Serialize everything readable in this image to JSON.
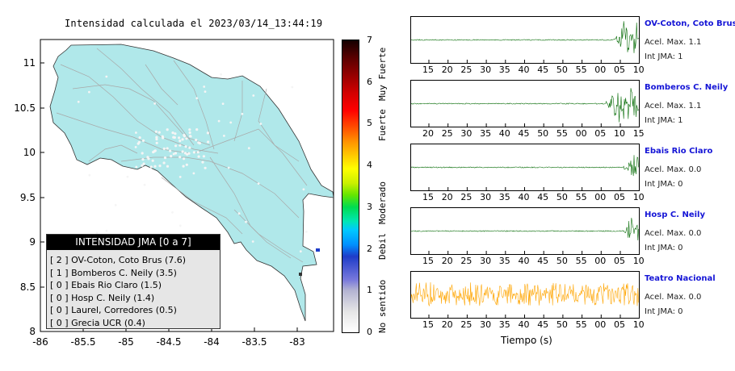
{
  "map": {
    "title": "Intensidad calculada el 2023/03/14_13:44:19",
    "lon_ticks": [
      "-86",
      "-85.5",
      "-85",
      "-84.5",
      "-84",
      "-83.5",
      "-83"
    ],
    "lat_ticks": [
      "11",
      "10.5",
      "10",
      "9.5",
      "9",
      "8.5",
      "8"
    ],
    "land_color": "#b0e8ea",
    "road_color": "#a8a8a8"
  },
  "legend": {
    "title": "INTENSIDAD JMA [0 a 7]",
    "items": [
      "[ 2 ]  OV-Coton, Coto Brus (7.6)",
      "[ 1 ]  Bomberos C. Neily (3.5)",
      "[ 0 ]  Ebais Rio Claro (1.5)",
      "[ 0 ]  Hosp C. Neily (1.4)",
      "[ 0 ]  Laurel, Corredores (0.5)",
      "[ 0 ]  Grecia UCR (0.4)"
    ]
  },
  "colorbar": {
    "ticks": [
      "0",
      "1",
      "2",
      "3",
      "4",
      "5",
      "6",
      "7"
    ],
    "words": {
      "no_sentido": "No sentido",
      "debil": "Debil",
      "moderado": "Moderado",
      "fuerte": "Fuerte",
      "muy_fuerte": "Muy Fuerte"
    }
  },
  "stations": [
    {
      "name": "OV-Coton, Coto Brus",
      "acc": "Acel. Max. 1.1",
      "int": "Int JMA: 1",
      "ticks": [
        "15",
        "20",
        "25",
        "30",
        "35",
        "40",
        "45",
        "50",
        "55",
        "00",
        "05",
        "10"
      ],
      "color": "#0a6e0a"
    },
    {
      "name": "Bomberos C. Neily",
      "acc": "Acel. Max. 1.1",
      "int": "Int JMA: 1",
      "ticks": [
        "20",
        "25",
        "30",
        "35",
        "40",
        "45",
        "50",
        "55",
        "00",
        "05",
        "10",
        "15"
      ],
      "color": "#0a6e0a"
    },
    {
      "name": "Ebais Rio Claro",
      "acc": "Acel. Max. 0.0",
      "int": "Int JMA: 0",
      "ticks": [
        "15",
        "20",
        "25",
        "30",
        "35",
        "40",
        "45",
        "50",
        "55",
        "00",
        "05",
        "10"
      ],
      "color": "#0a6e0a"
    },
    {
      "name": "Hosp C. Neily",
      "acc": "Acel. Max. 0.0",
      "int": "Int JMA: 0",
      "ticks": [
        "15",
        "20",
        "25",
        "30",
        "35",
        "40",
        "45",
        "50",
        "55",
        "00",
        "05",
        "10"
      ],
      "color": "#0a6e0a"
    },
    {
      "name": "Teatro Nacional",
      "acc": "Acel. Max. 0.0",
      "int": "Int JMA: 0",
      "ticks": [
        "15",
        "20",
        "25",
        "30",
        "35",
        "40",
        "45",
        "50",
        "55",
        "00",
        "05",
        "10"
      ],
      "color": "#ffa500"
    }
  ],
  "xlabel": "Tiempo (s)",
  "chart_data": [
    {
      "type": "heatmap",
      "title": "Intensidad calculada el 2023/03/14_13:44:19",
      "xlim": [
        -86,
        -82.6
      ],
      "ylim": [
        8,
        11.3
      ],
      "colorbar_range": [
        0,
        7
      ],
      "legend_placement": "bottom-left"
    },
    {
      "type": "line",
      "xlabel": "Tiempo (s)",
      "series": [
        {
          "name": "OV-Coton, Coto Brus",
          "activity": "strong burst at end"
        },
        {
          "name": "Bomberos C. Neily",
          "activity": "strong burst at end"
        },
        {
          "name": "Ebais Rio Claro",
          "activity": "burst at end"
        },
        {
          "name": "Hosp C. Neily",
          "activity": "burst at end"
        },
        {
          "name": "Teatro Nacional",
          "activity": "continuous noise"
        }
      ]
    }
  ]
}
